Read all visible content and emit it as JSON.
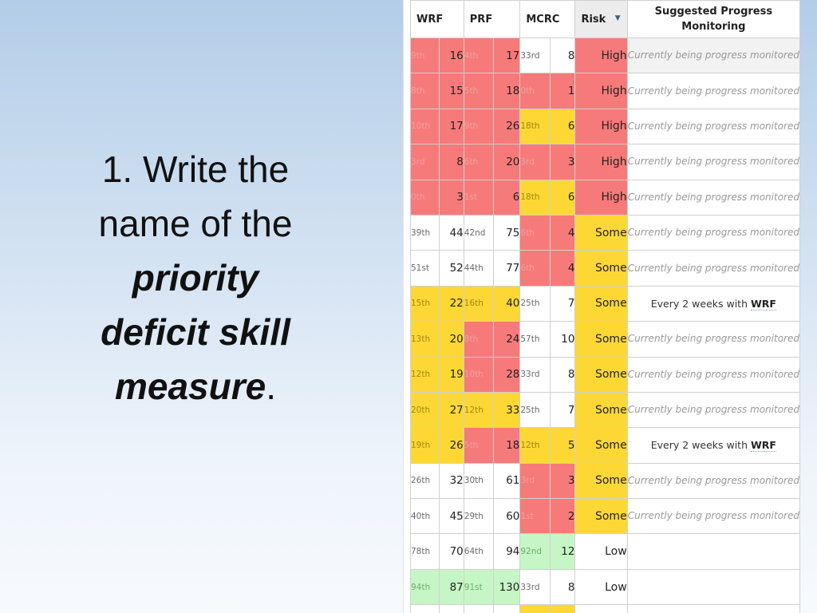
{
  "prompt": {
    "number": "1.",
    "line1": "Write the",
    "line2": "name of the",
    "em1": "priority",
    "em2": "deficit skill",
    "em3": "measure",
    "period": "."
  },
  "table": {
    "headers": {
      "wrf": "WRF",
      "prf": "PRF",
      "mcrc": "MCRC",
      "risk": "Risk",
      "sort_icon": "▼",
      "monitoring": "Suggested Progress Monitoring"
    },
    "colors": {
      "red": "#f77a7a",
      "yellow": "#fdd835",
      "green": "#c6f6c6",
      "white": "#ffffff"
    },
    "rows": [
      {
        "wrf": [
          "9th",
          "16",
          "red"
        ],
        "prf": [
          "4th",
          "17",
          "red"
        ],
        "mcrc": [
          "33rd",
          "8",
          "white"
        ],
        "risk": [
          "High",
          "red"
        ],
        "monitoring": "Currently being progress monitored",
        "mon_style": "gray"
      },
      {
        "wrf": [
          "8th",
          "15",
          "red"
        ],
        "prf": [
          "5th",
          "18",
          "red"
        ],
        "mcrc": [
          "0th",
          "1",
          "red"
        ],
        "risk": [
          "High",
          "red"
        ],
        "monitoring": "Currently being progress monitored",
        "mon_style": "italic"
      },
      {
        "wrf": [
          "10th",
          "17",
          "red"
        ],
        "prf": [
          "9th",
          "26",
          "red"
        ],
        "mcrc": [
          "18th",
          "6",
          "yellow"
        ],
        "risk": [
          "High",
          "red"
        ],
        "monitoring": "Currently being progress monitored",
        "mon_style": "italic"
      },
      {
        "wrf": [
          "3rd",
          "8",
          "red"
        ],
        "prf": [
          "6th",
          "20",
          "red"
        ],
        "mcrc": [
          "3rd",
          "3",
          "red"
        ],
        "risk": [
          "High",
          "red"
        ],
        "monitoring": "Currently being progress monitored",
        "mon_style": "italic"
      },
      {
        "wrf": [
          "0th",
          "3",
          "red"
        ],
        "prf": [
          "1st",
          "6",
          "red"
        ],
        "mcrc": [
          "18th",
          "6",
          "yellow"
        ],
        "risk": [
          "High",
          "red"
        ],
        "monitoring": "Currently being progress monitored",
        "mon_style": "italic"
      },
      {
        "wrf": [
          "39th",
          "44",
          "white"
        ],
        "prf": [
          "42nd",
          "75",
          "white"
        ],
        "mcrc": [
          "6th",
          "4",
          "red"
        ],
        "risk": [
          "Some",
          "yellow"
        ],
        "monitoring": "Currently being progress monitored",
        "mon_style": "italic"
      },
      {
        "wrf": [
          "51st",
          "52",
          "white"
        ],
        "prf": [
          "44th",
          "77",
          "white"
        ],
        "mcrc": [
          "6th",
          "4",
          "red"
        ],
        "risk": [
          "Some",
          "yellow"
        ],
        "monitoring": "Currently being progress monitored",
        "mon_style": "italic"
      },
      {
        "wrf": [
          "15th",
          "22",
          "yellow"
        ],
        "prf": [
          "16th",
          "40",
          "yellow"
        ],
        "mcrc": [
          "25th",
          "7",
          "white"
        ],
        "risk": [
          "Some",
          "yellow"
        ],
        "monitoring": "Every 2 weeks with ",
        "mon_measure": "WRF",
        "mon_style": "plain"
      },
      {
        "wrf": [
          "13th",
          "20",
          "yellow"
        ],
        "prf": [
          "8th",
          "24",
          "red"
        ],
        "mcrc": [
          "57th",
          "10",
          "white"
        ],
        "risk": [
          "Some",
          "yellow"
        ],
        "monitoring": "Currently being progress monitored",
        "mon_style": "italic"
      },
      {
        "wrf": [
          "12th",
          "19",
          "yellow"
        ],
        "prf": [
          "10th",
          "28",
          "red"
        ],
        "mcrc": [
          "33rd",
          "8",
          "white"
        ],
        "risk": [
          "Some",
          "yellow"
        ],
        "monitoring": "Currently being progress monitored",
        "mon_style": "italic"
      },
      {
        "wrf": [
          "20th",
          "27",
          "yellow"
        ],
        "prf": [
          "12th",
          "33",
          "yellow"
        ],
        "mcrc": [
          "25th",
          "7",
          "white"
        ],
        "risk": [
          "Some",
          "yellow"
        ],
        "monitoring": "Currently being progress monitored",
        "mon_style": "italic"
      },
      {
        "wrf": [
          "19th",
          "26",
          "yellow"
        ],
        "prf": [
          "5th",
          "18",
          "red"
        ],
        "mcrc": [
          "12th",
          "5",
          "yellow"
        ],
        "risk": [
          "Some",
          "yellow"
        ],
        "monitoring": "Every 2 weeks with ",
        "mon_measure": "WRF",
        "mon_style": "plain"
      },
      {
        "wrf": [
          "26th",
          "32",
          "white"
        ],
        "prf": [
          "30th",
          "61",
          "white"
        ],
        "mcrc": [
          "3rd",
          "3",
          "red"
        ],
        "risk": [
          "Some",
          "yellow"
        ],
        "monitoring": "Currently being progress monitored",
        "mon_style": "italic"
      },
      {
        "wrf": [
          "40th",
          "45",
          "white"
        ],
        "prf": [
          "29th",
          "60",
          "white"
        ],
        "mcrc": [
          "1st",
          "2",
          "red"
        ],
        "risk": [
          "Some",
          "yellow"
        ],
        "monitoring": "Currently being progress monitored",
        "mon_style": "italic"
      },
      {
        "wrf": [
          "78th",
          "70",
          "white"
        ],
        "prf": [
          "64th",
          "94",
          "white"
        ],
        "mcrc": [
          "92nd",
          "12",
          "green"
        ],
        "risk": [
          "Low",
          "white"
        ],
        "monitoring": "",
        "mon_style": "italic"
      },
      {
        "wrf": [
          "94th",
          "87",
          "green"
        ],
        "prf": [
          "91st",
          "130",
          "green"
        ],
        "mcrc": [
          "33rd",
          "8",
          "white"
        ],
        "risk": [
          "Low",
          "white"
        ],
        "monitoring": "",
        "mon_style": "italic"
      },
      {
        "wrf": [
          "",
          "",
          "white"
        ],
        "prf": [
          "",
          "",
          "white"
        ],
        "mcrc": [
          "",
          "",
          "yellow"
        ],
        "risk": [
          "",
          "white"
        ],
        "monitoring": "",
        "mon_style": "italic"
      }
    ]
  }
}
